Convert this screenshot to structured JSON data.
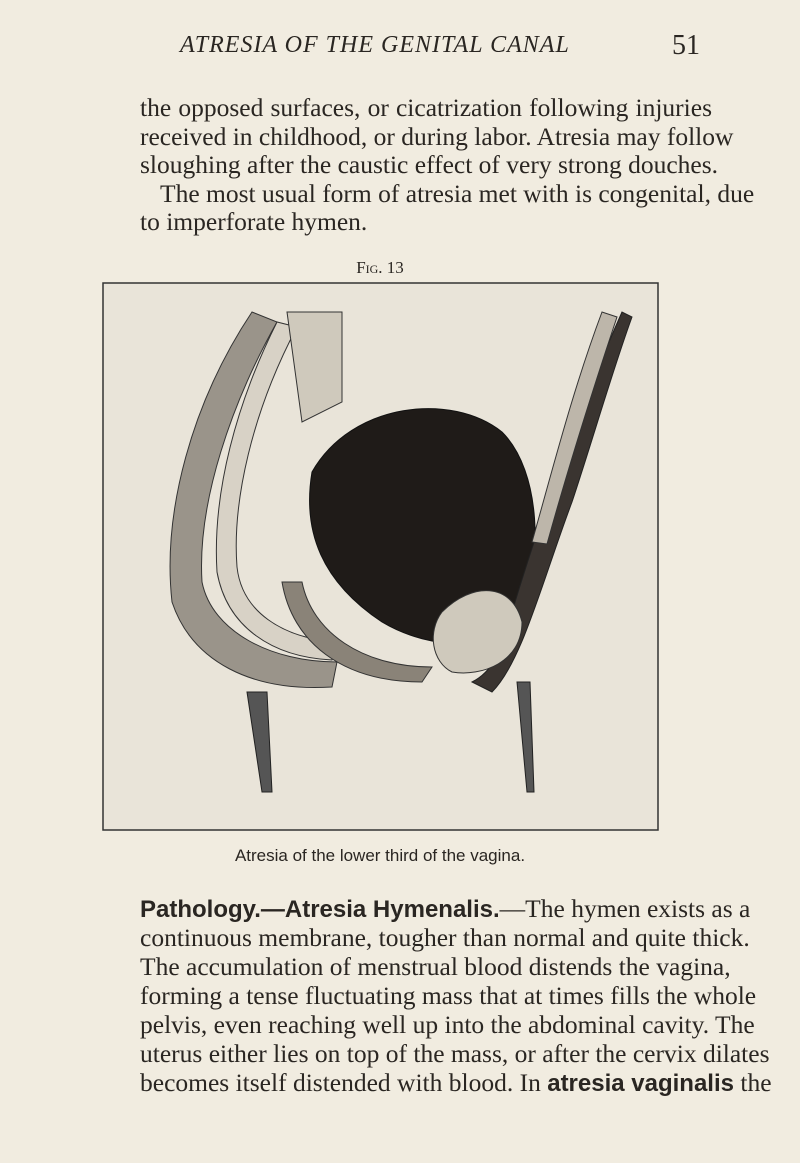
{
  "header": {
    "title": "ATRESIA OF THE GENITAL CANAL",
    "page_number": "51"
  },
  "paragraphs": [
    {
      "lines": [
        "the opposed surfaces, or cicatrization following injuries",
        "received in childhood, or during labor. Atresia may follow",
        "sloughing after the caustic effect of very strong douches."
      ]
    },
    {
      "lines": [
        "The most usual form of atresia met with is congenital, due",
        "to imperforate hymen."
      ]
    }
  ],
  "figure": {
    "label": "Fig. 13",
    "caption": "Atresia of the lower third of the vagina."
  },
  "section": {
    "lines": [
      [
        {
          "text": "Pathology.—Atresia Hymenalis.",
          "bold": true
        },
        {
          "text": "—The hymen exists as a"
        }
      ],
      "continuous membrane, tougher than normal and quite thick.",
      "The accumulation of menstrual blood distends the vagina,",
      "forming a tense fluctuating mass that at times fills the whole",
      "pelvis, even reaching well up into the abdominal cavity. The",
      "uterus either lies on top of the mass, or after the cervix dilates",
      [
        {
          "text": "becomes itself distended with blood. In "
        },
        {
          "text": "atresia vaginalis",
          "bold": true
        },
        {
          "text": " the"
        }
      ]
    ]
  }
}
